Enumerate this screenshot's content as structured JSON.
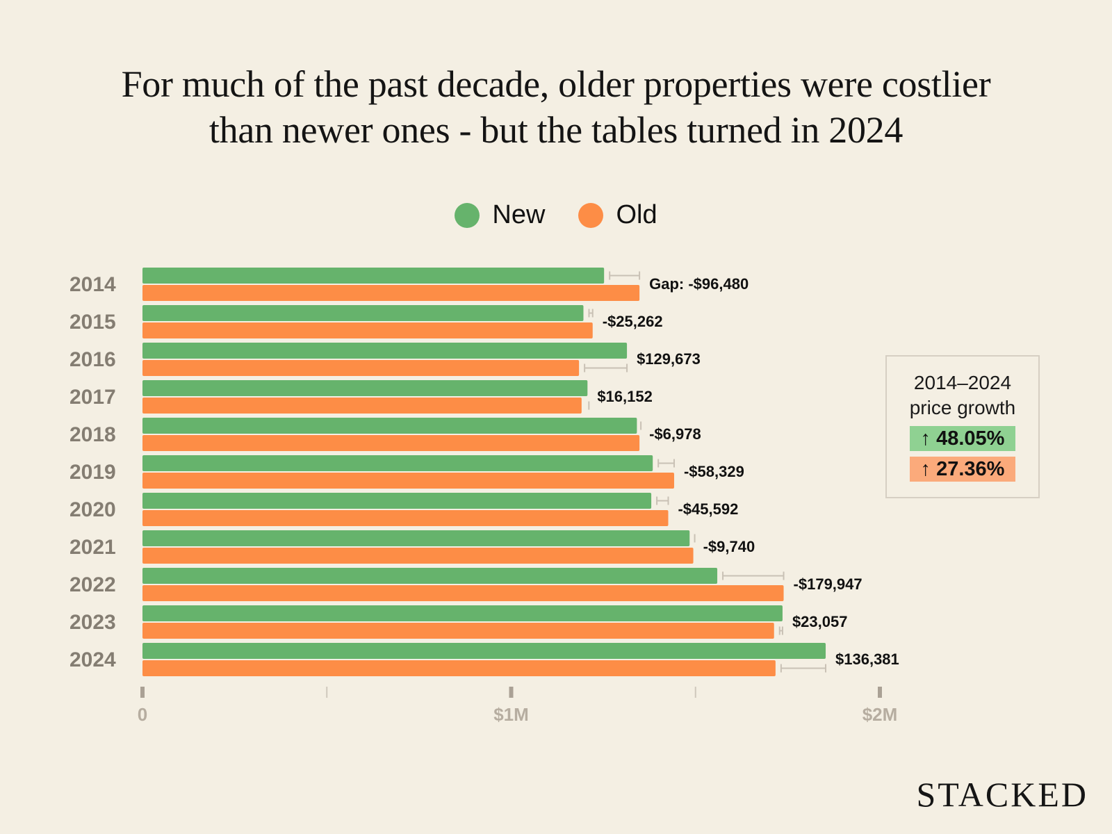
{
  "title_line1": "For much of the past decade, older properties were costlier",
  "title_line2": "than newer ones - but the tables turned in 2024",
  "colors": {
    "new": "#66b36c",
    "old": "#fd8d46",
    "new_badge": "#8fd192",
    "old_badge": "#fbaa7b",
    "gap_whisker": "#c9c1b5"
  },
  "legend": [
    {
      "label": "New",
      "series": "new"
    },
    {
      "label": "Old",
      "series": "old"
    }
  ],
  "growth_box": {
    "title_line1": "2014–2024",
    "title_line2": "price growth",
    "new_growth": "↑ 48.05%",
    "old_growth": "↑ 27.36%"
  },
  "brand": "STACKED",
  "chart_data": {
    "type": "bar",
    "orientation": "horizontal",
    "title": "For much of the past decade, older properties were costlier than newer ones - but the tables turned in 2024",
    "categories": [
      "2014",
      "2015",
      "2016",
      "2017",
      "2018",
      "2019",
      "2020",
      "2021",
      "2022",
      "2023",
      "2024"
    ],
    "series": [
      {
        "name": "New",
        "values": [
          1.252,
          1.196,
          1.314,
          1.207,
          1.341,
          1.384,
          1.38,
          1.484,
          1.559,
          1.736,
          1.853
        ]
      },
      {
        "name": "Old",
        "values": [
          1.348,
          1.221,
          1.184,
          1.191,
          1.348,
          1.442,
          1.426,
          1.494,
          1.739,
          1.713,
          1.717
        ]
      }
    ],
    "value_unit": "$M",
    "gap_labels": [
      "Gap: -$96,480",
      "-$25,262",
      "$129,673",
      "$16,152",
      "-$6,978",
      "-$58,329",
      "-$45,592",
      "-$9,740",
      "-$179,947",
      "$23,057",
      "$136,381"
    ],
    "xlim": [
      0,
      2
    ],
    "x_ticks": [
      {
        "value": 0,
        "label": "0",
        "major": true
      },
      {
        "value": 0.5,
        "label": "",
        "major": false
      },
      {
        "value": 1,
        "label": "$1M",
        "major": true
      },
      {
        "value": 1.5,
        "label": "",
        "major": false
      },
      {
        "value": 2,
        "label": "$2M",
        "major": true
      }
    ],
    "xlabel": "",
    "ylabel": "",
    "grid": false,
    "legend_position": "top-center"
  }
}
